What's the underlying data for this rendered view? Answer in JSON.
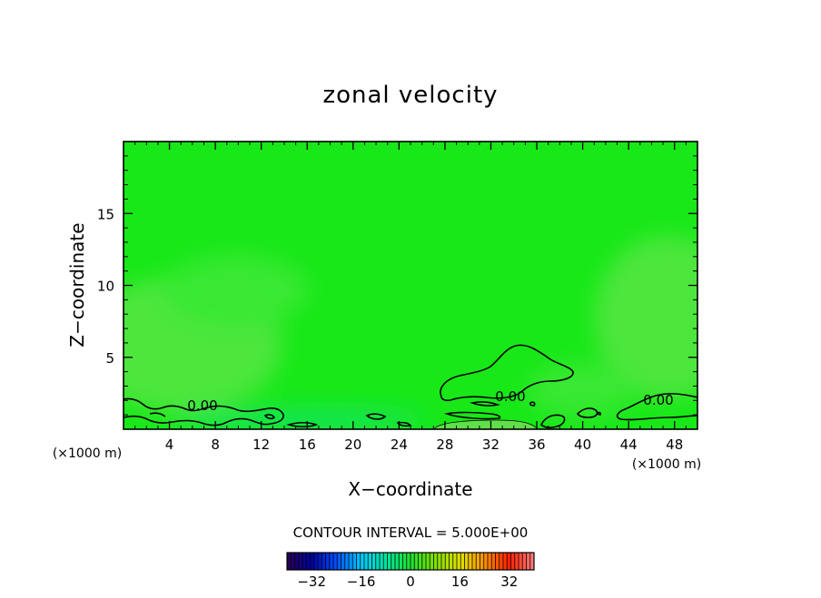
{
  "chart_data": {
    "type": "heatmap",
    "title": "zonal velocity",
    "xlabel": "X−coordinate",
    "ylabel": "Z−coordinate",
    "x_unit_left": "(×1000 m)",
    "x_unit_right": "(×1000 m)",
    "xlim": [
      0,
      50
    ],
    "ylim": [
      0,
      20
    ],
    "x_ticks": [
      4,
      8,
      12,
      16,
      20,
      24,
      28,
      32,
      36,
      40,
      44,
      48
    ],
    "y_ticks": [
      5,
      10,
      15
    ],
    "contour_interval_text": "CONTOUR INTERVAL = 5.000E+00",
    "contour_labels": [
      "0.00",
      "0.00",
      "0.00"
    ],
    "colorbar": {
      "range": [
        -40,
        40
      ],
      "ticks": [
        -32,
        -16,
        0,
        16,
        32
      ],
      "palette": [
        "#2a0050",
        "#0000a0",
        "#0050ff",
        "#00c8ff",
        "#00e6a0",
        "#20e030",
        "#80e000",
        "#e0e000",
        "#ff9000",
        "#ff2000",
        "#ff8080"
      ]
    },
    "field_colors": {
      "background": "#18e818",
      "weak_positive": "#4ee63c",
      "weak_positive_2": "#38e830",
      "near_zero_negative": "#14e45a",
      "positive_patch": "#60e048"
    }
  }
}
